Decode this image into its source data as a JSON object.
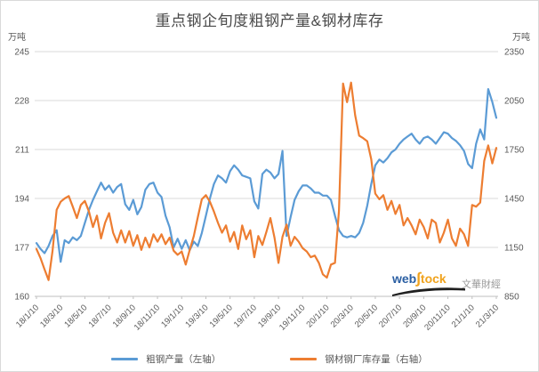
{
  "title": "重点钢企旬度粗钢产量&钢材库存",
  "left_axis_unit": "万吨",
  "right_axis_unit": "万吨",
  "colors": {
    "title": "#4a4a4a",
    "axis_text": "#595959",
    "gridline": "#d9d9d9",
    "axis_line": "#bfbfbf",
    "series_blue": "#5b9bd5",
    "series_orange": "#ed7d31",
    "watermark_blue": "#2b5fa3",
    "watermark_gold": "#f0a31e",
    "watermark_gray": "#9a9a9a"
  },
  "watermark": {
    "web": "web",
    "s": "∫",
    "tock": "tock",
    "cn": "文華財經"
  },
  "legend": {
    "items": [
      {
        "label": "粗钢产量（左轴）",
        "color": "#5b9bd5"
      },
      {
        "label": "钢材钢厂库存量（右轴）",
        "color": "#ed7d31"
      }
    ]
  },
  "chart_data": {
    "type": "line",
    "title": "重点钢企旬度粗钢产量&钢材库存",
    "grid": true,
    "legend_position": "bottom",
    "x_description": "旬度 (every 10 days), labels shown every 6th point",
    "x_tick_every": 6,
    "x_tick_labels": [
      "18/1/10",
      "18/3/10",
      "18/5/10",
      "18/7/10",
      "18/9/10",
      "18/11/10",
      "19/1/10",
      "19/3/10",
      "19/5/10",
      "19/7/10",
      "19/9/10",
      "19/11/10",
      "20/1/10",
      "20/3/10",
      "20/5/10",
      "20/7/10",
      "20/9/10",
      "20/11/10",
      "21/1/10",
      "21/3/10"
    ],
    "left_axis": {
      "unit": "万吨",
      "min": 160,
      "max": 245,
      "ticks": [
        245,
        228,
        211,
        194,
        177,
        160
      ]
    },
    "right_axis": {
      "unit": "万吨",
      "min": 850,
      "max": 2350,
      "ticks": [
        2350,
        2050,
        1750,
        1450,
        1150,
        850
      ]
    },
    "series": [
      {
        "name": "粗钢产量（左轴）",
        "axis": "left",
        "color": "#5b9bd5",
        "values": [
          178.5,
          176.5,
          175,
          177.5,
          181,
          183,
          172,
          179.5,
          178.5,
          180.5,
          179.5,
          181,
          185.5,
          190,
          193.5,
          196.5,
          199.5,
          197,
          198.5,
          196,
          198,
          199,
          192,
          190,
          193.5,
          188.5,
          191,
          197,
          199,
          199.5,
          196,
          194.5,
          188,
          184,
          177,
          180,
          176.5,
          179.5,
          176,
          179,
          177.5,
          182,
          188,
          194,
          199,
          202,
          201,
          199.5,
          203.5,
          205.5,
          204,
          202,
          201.5,
          201,
          193,
          190.5,
          202.5,
          204,
          203,
          201,
          202.5,
          210.5,
          181,
          187.5,
          193.5,
          196.5,
          198.5,
          198.5,
          197.5,
          196,
          196,
          195,
          195,
          193.5,
          188,
          183,
          181,
          180.5,
          181,
          180.5,
          182,
          185.5,
          191.5,
          199,
          205.5,
          207.5,
          206.5,
          208,
          210,
          211,
          213,
          214.5,
          215.5,
          216.5,
          214.5,
          213,
          215,
          215.5,
          214.5,
          213,
          215,
          217,
          216.5,
          215,
          214,
          212.5,
          210.5,
          206,
          204.5,
          213,
          218,
          214.5,
          232,
          227.5,
          222
        ]
      },
      {
        "name": "钢材钢厂库存量（右轴）",
        "axis": "right",
        "color": "#ed7d31",
        "values": [
          1140,
          1085,
          1015,
          950,
          1130,
          1380,
          1430,
          1450,
          1465,
          1400,
          1330,
          1410,
          1435,
          1370,
          1275,
          1345,
          1205,
          1300,
          1360,
          1240,
          1180,
          1255,
          1180,
          1250,
          1160,
          1225,
          1135,
          1210,
          1150,
          1230,
          1185,
          1230,
          1170,
          1210,
          1130,
          1105,
          1125,
          1045,
          1135,
          1220,
          1335,
          1445,
          1470,
          1430,
          1370,
          1300,
          1240,
          1285,
          1185,
          1245,
          1140,
          1285,
          1200,
          1255,
          1090,
          1220,
          1165,
          1245,
          1330,
          1210,
          1055,
          1215,
          1290,
          1160,
          1215,
          1185,
          1145,
          1125,
          1090,
          1100,
          1055,
          985,
          965,
          1045,
          1055,
          1375,
          2155,
          2040,
          2160,
          1960,
          1835,
          1820,
          1800,
          1690,
          1480,
          1445,
          1470,
          1380,
          1435,
          1355,
          1410,
          1285,
          1330,
          1285,
          1230,
          1320,
          1275,
          1205,
          1320,
          1300,
          1180,
          1240,
          1320,
          1205,
          1160,
          1265,
          1230,
          1160,
          1410,
          1400,
          1425,
          1680,
          1775,
          1665,
          1760
        ]
      }
    ]
  }
}
